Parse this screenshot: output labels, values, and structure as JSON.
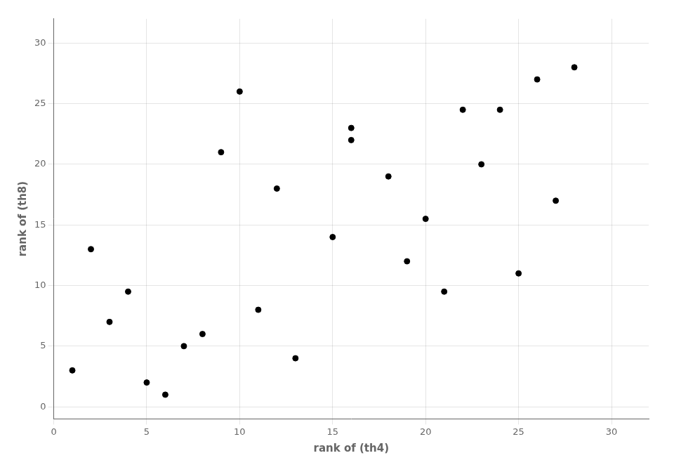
{
  "chart_data": {
    "type": "scatter",
    "x": [
      1,
      2,
      3,
      4,
      5,
      6,
      7,
      8,
      9,
      10,
      11,
      12,
      13,
      15,
      16,
      16,
      18,
      19,
      20,
      21,
      22,
      23,
      24,
      25,
      26,
      27,
      28
    ],
    "values": [
      3,
      13,
      7,
      9.5,
      2,
      1,
      5,
      6,
      21,
      26,
      8,
      18,
      4,
      14,
      23,
      22,
      19,
      12,
      15.5,
      9.5,
      24.5,
      20,
      24.5,
      11,
      27,
      17,
      28
    ],
    "color": "#000000",
    "xlabel": "rank of (th4)",
    "ylabel": "rank of (th8)",
    "xlim": [
      0,
      32
    ],
    "ylim": [
      -1,
      32
    ],
    "xticks": [
      0,
      5,
      10,
      15,
      20,
      25,
      30
    ],
    "yticks": [
      0,
      5,
      10,
      15,
      20,
      25,
      30
    ],
    "grid": true
  }
}
